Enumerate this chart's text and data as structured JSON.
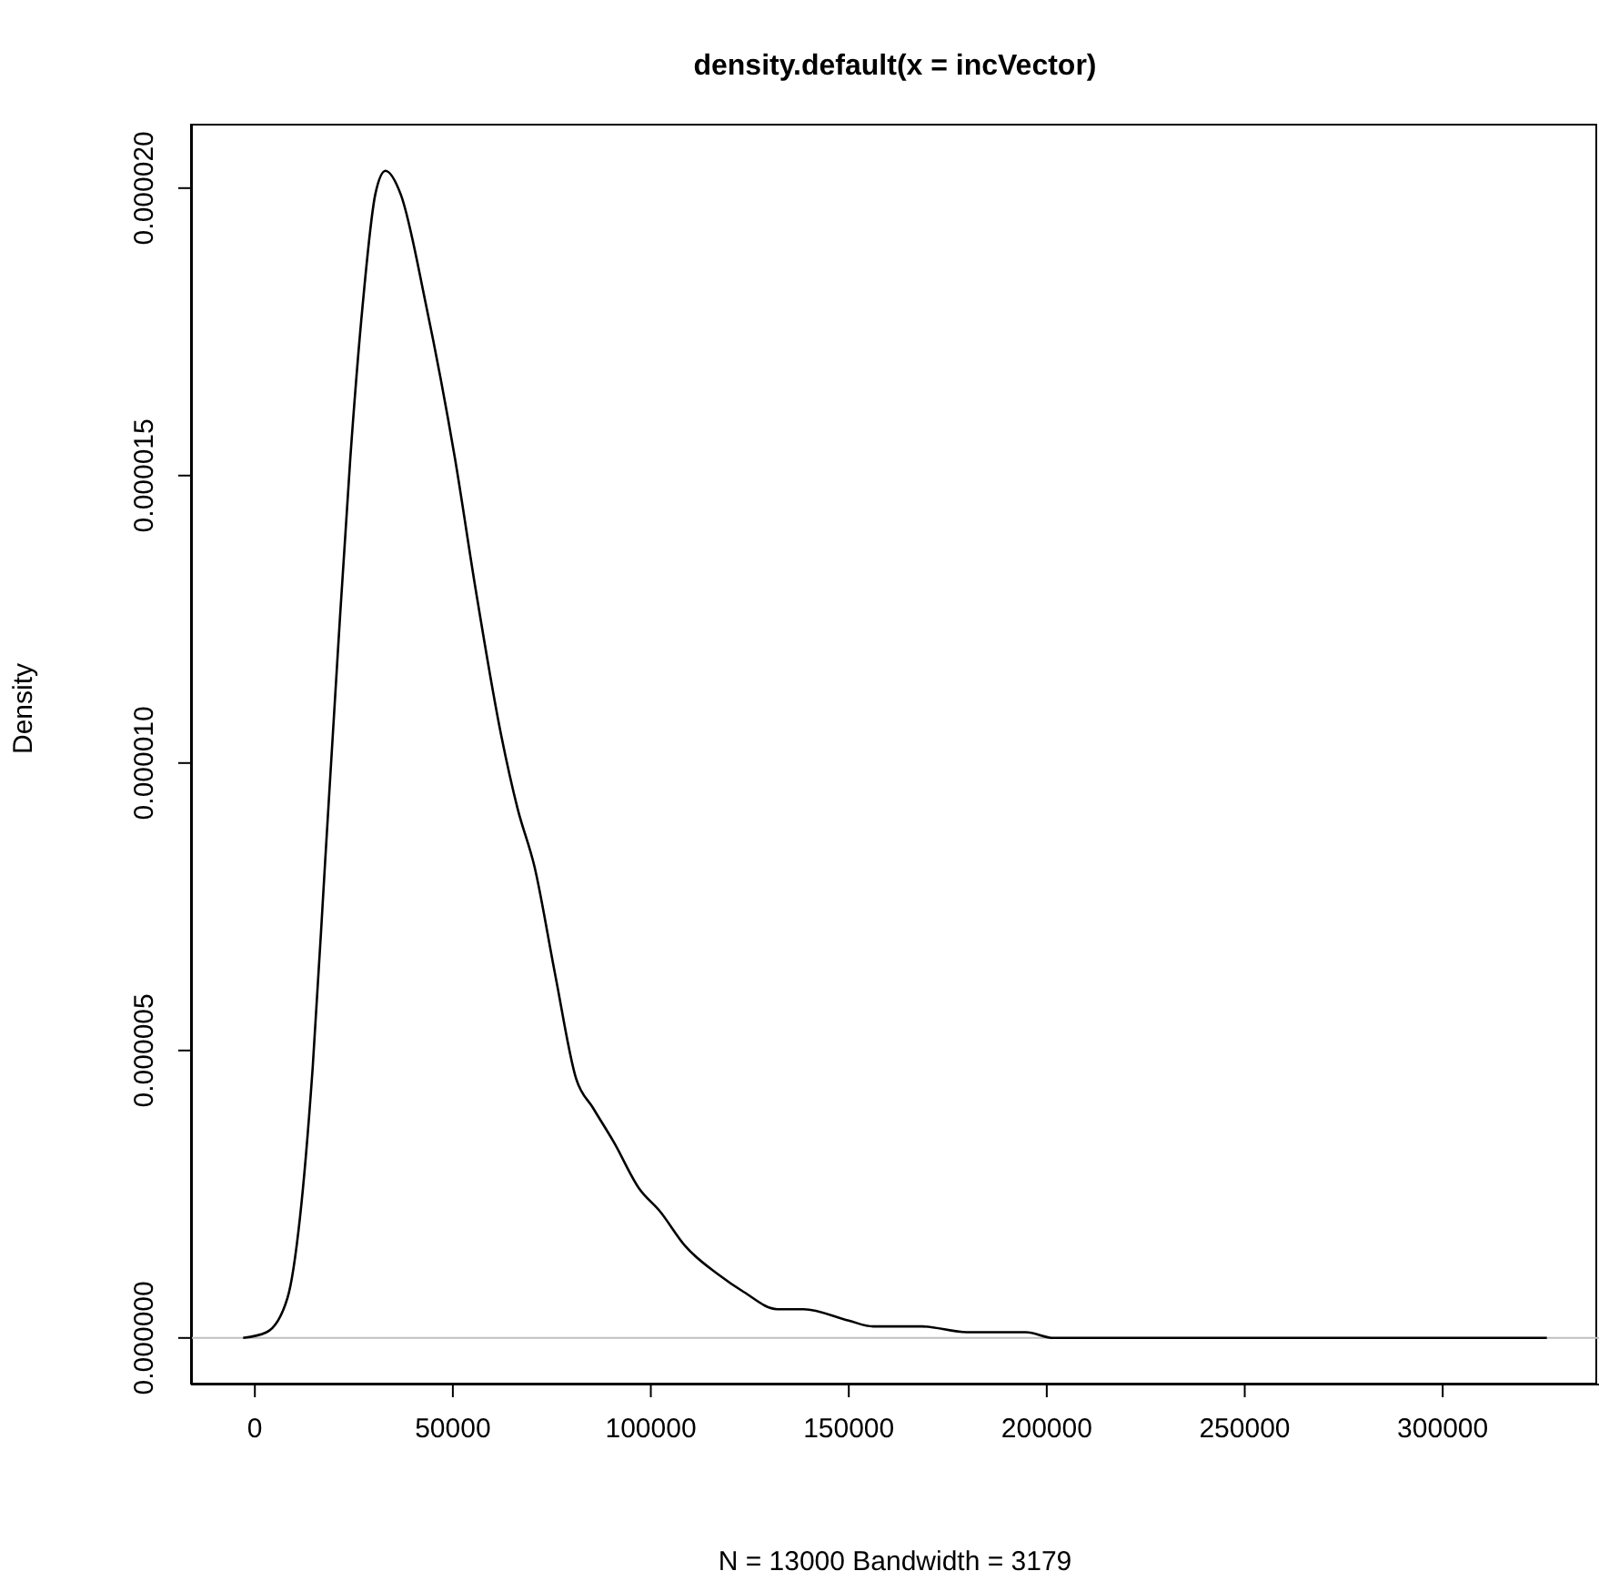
{
  "chart_data": {
    "type": "line",
    "title": "density.default(x = incVector)",
    "xlabel": "N = 13000   Bandwidth = 3179",
    "ylabel": "Density",
    "xlim": [
      -16130,
      339470
    ],
    "xticks": [
      0,
      50000,
      100000,
      150000,
      200000,
      250000,
      300000
    ],
    "ylim": [
      -8.1e-07,
      2.112e-05
    ],
    "yticks": [
      {
        "value": 0,
        "label": "0.000000"
      },
      {
        "value": 5e-06,
        "label": "0.000005"
      },
      {
        "value": 1e-05,
        "label": "0.000010"
      },
      {
        "value": 1.5e-05,
        "label": "0.000015"
      },
      {
        "value": 2e-05,
        "label": "0.000020"
      }
    ],
    "grid": false,
    "marker": "none",
    "line_style": "solid",
    "ref_lines": [
      {
        "axis": "y",
        "value": 0,
        "label": null,
        "color": "#bebebe"
      }
    ],
    "series": [
      {
        "color": "#000000",
        "x": [
          -2960,
          2960,
          8250,
          11400,
          14600,
          17760,
          20930,
          24100,
          27270,
          30440,
          32980,
          36790,
          43130,
          50530,
          55810,
          62160,
          66380,
          70610,
          75900,
          81180,
          85410,
          90700,
          97040,
          102330,
          108670,
          117120,
          123470,
          131920,
          138600,
          150000,
          156140,
          168420,
          179820,
          194740,
          201750,
          248250,
          257000,
          326300
        ],
        "values": [
          0,
          1e-07,
          7e-07,
          2.1e-06,
          4.7e-06,
          8.3e-06,
          1.19e-05,
          1.53e-05,
          1.8e-05,
          1.99e-05,
          2.03e-05,
          1.99e-05,
          1.8e-05,
          1.53e-05,
          1.3e-05,
          1.05e-05,
          9.2e-06,
          8.2e-06,
          6.3e-06,
          4.5e-06,
          4e-06,
          3.4e-06,
          2.6e-06,
          2.2e-06,
          1.6e-06,
          1.1e-06,
          8e-07,
          5e-07,
          5e-07,
          3e-07,
          2e-07,
          2e-07,
          1e-07,
          1e-07,
          0,
          0,
          0,
          0
        ]
      }
    ]
  }
}
